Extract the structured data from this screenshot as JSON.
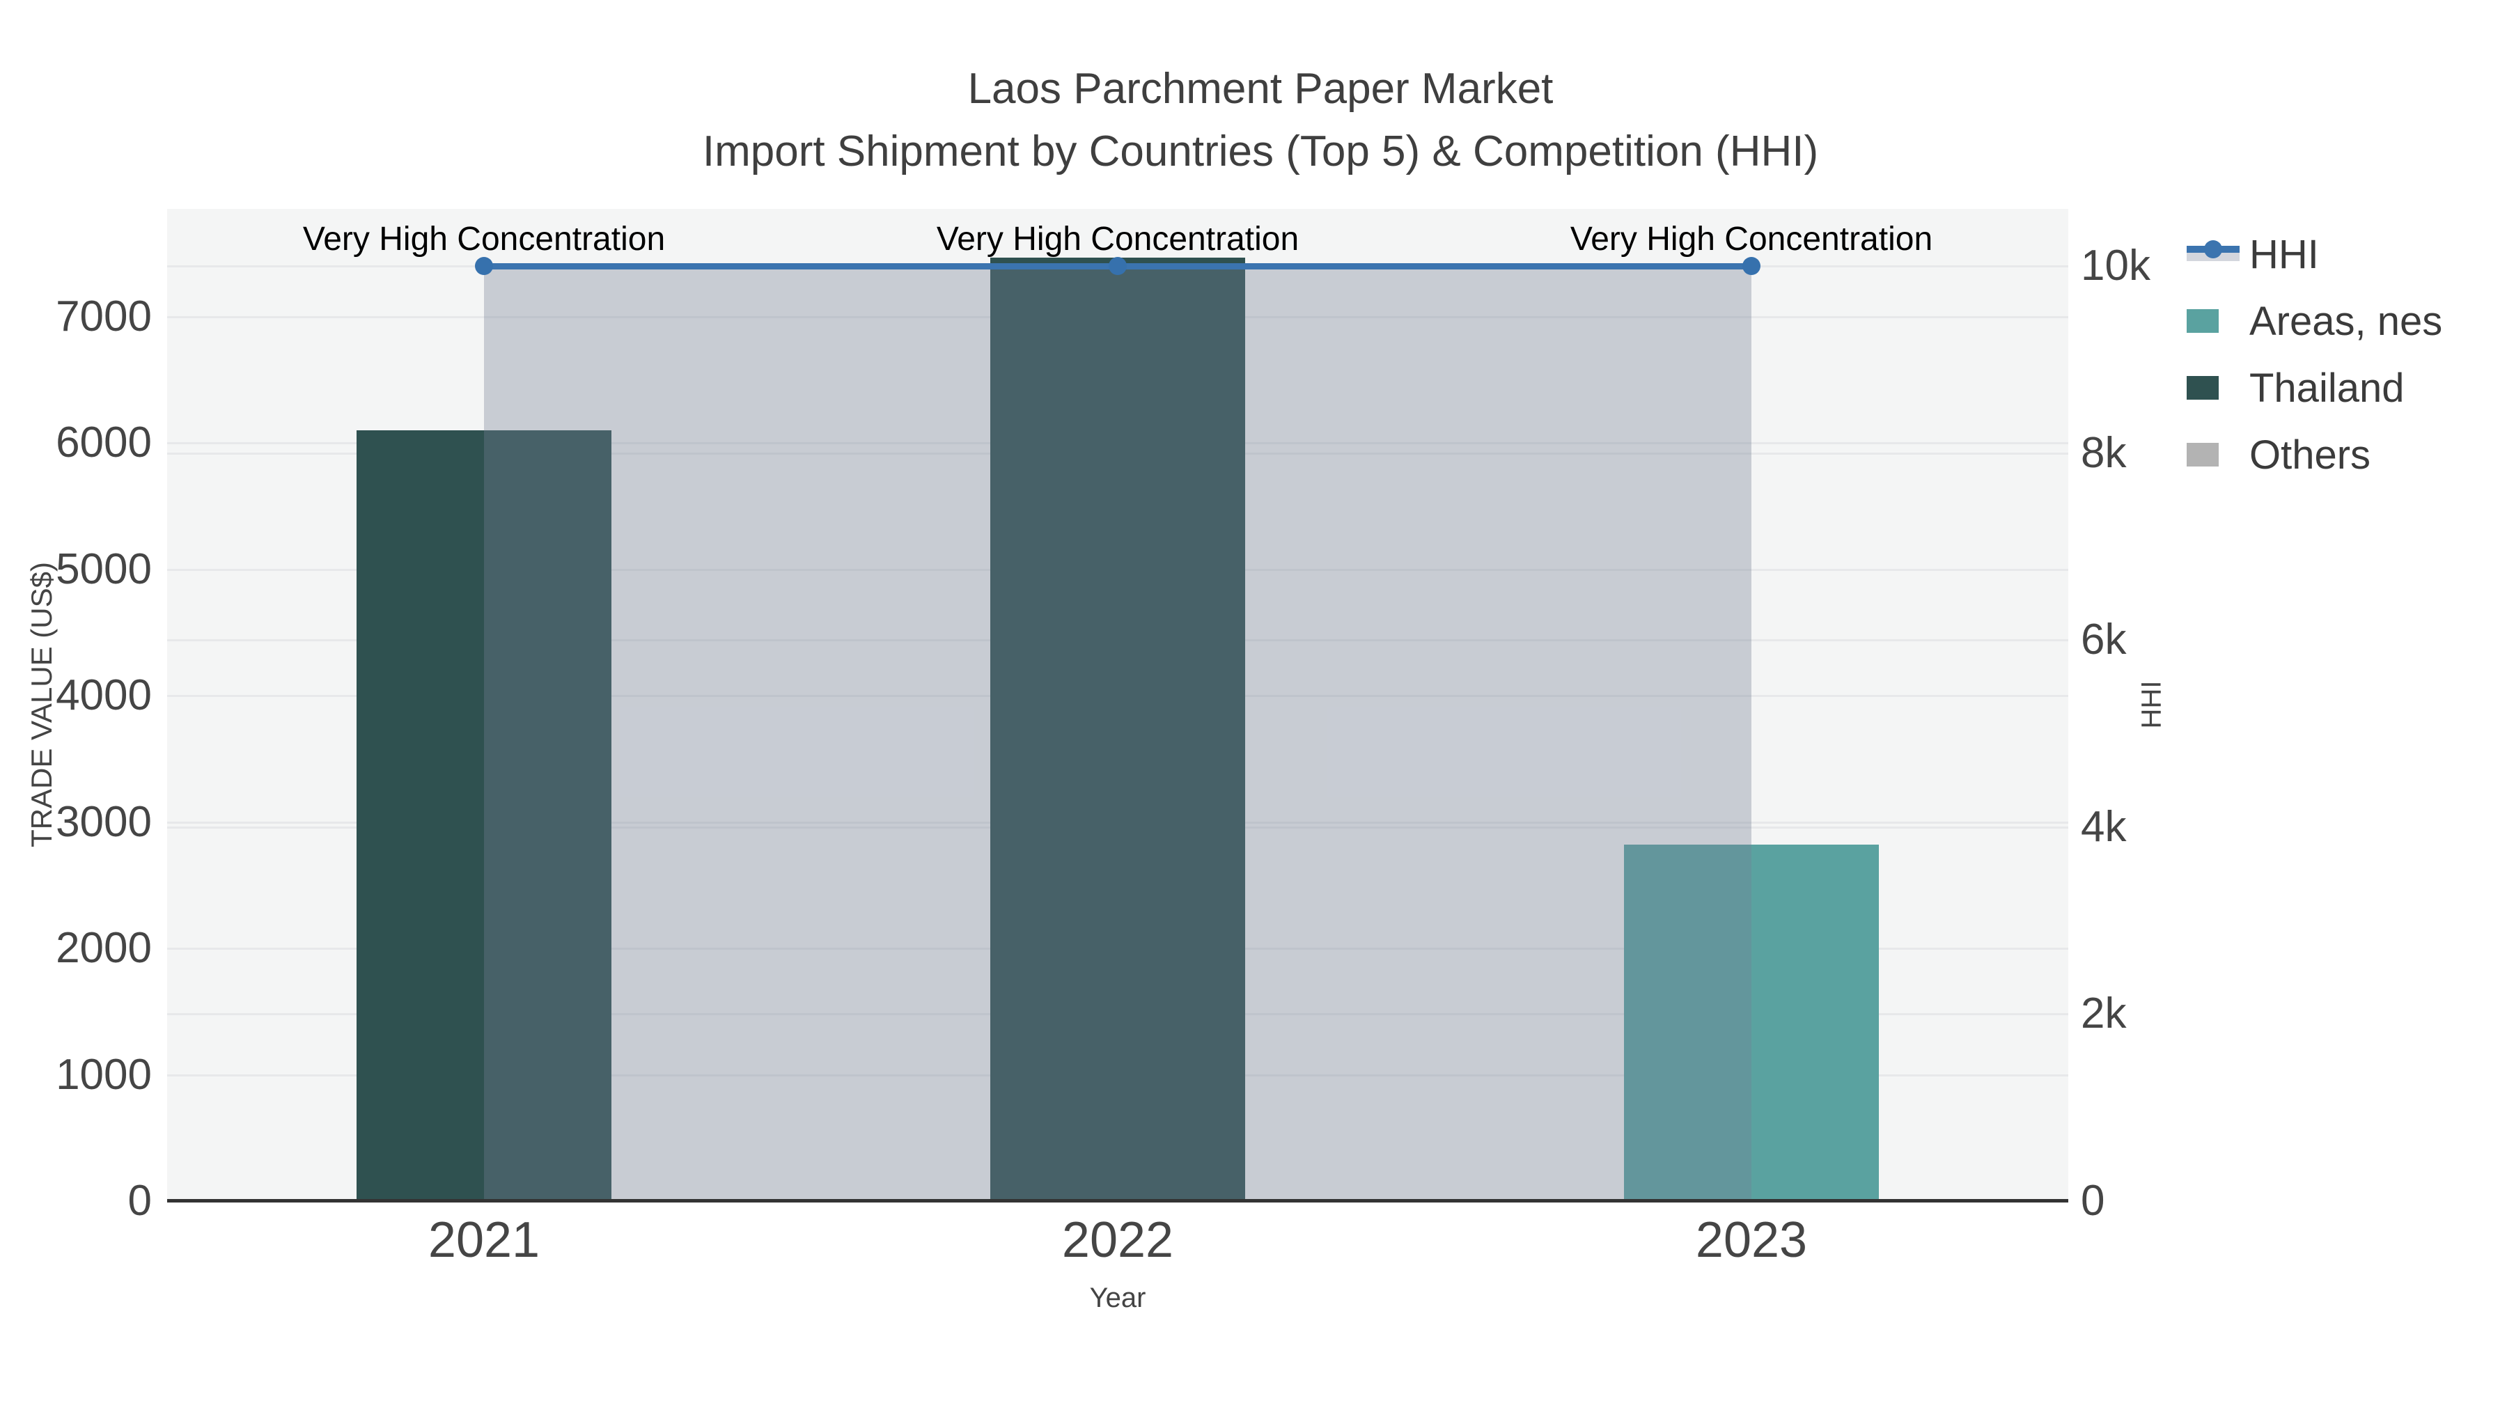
{
  "chart_data": {
    "type": "bar+line",
    "title_line1": "Laos Parchment Paper Market",
    "title_line2": "Import Shipment by Countries (Top 5) & Competition (HHI)",
    "x_axis": {
      "title": "Year",
      "categories": [
        "2021",
        "2022",
        "2023"
      ]
    },
    "left_axis": {
      "title": "TRADE VALUE (US$)",
      "ticks": [
        "0",
        "1000",
        "2000",
        "3000",
        "4000",
        "5000",
        "6000",
        "7000"
      ],
      "tick_values": [
        0,
        1000,
        2000,
        3000,
        4000,
        5000,
        6000,
        7000
      ],
      "range": [
        0,
        7860
      ]
    },
    "right_axis": {
      "title": "HHI",
      "ticks": [
        "0",
        "2k",
        "4k",
        "6k",
        "8k",
        "10k"
      ],
      "tick_values": [
        0,
        2000,
        4000,
        6000,
        8000,
        10000
      ],
      "range": [
        0,
        10610
      ]
    },
    "series": [
      {
        "name": "HHI",
        "type": "line",
        "axis": "right",
        "color": "#3b74af",
        "values": [
          10000,
          10000,
          10000
        ]
      },
      {
        "name": "Areas, nes",
        "type": "bar",
        "axis": "left",
        "color": "#5aa2a0",
        "values": [
          0,
          0,
          2820
        ]
      },
      {
        "name": "Thailand",
        "type": "bar",
        "axis": "left",
        "color": "#2f5150",
        "values": [
          6100,
          7470,
          0
        ]
      },
      {
        "name": "Others",
        "type": "bar",
        "axis": "left",
        "color": "#b3b3b3",
        "values": [
          0,
          0,
          0
        ]
      }
    ],
    "annotations": [
      {
        "text": "Very High Concentration",
        "category": "2021"
      },
      {
        "text": "Very High Concentration",
        "category": "2022"
      },
      {
        "text": "Very High Concentration",
        "category": "2023"
      }
    ],
    "legend_position": "top-right",
    "grid": true
  },
  "legend": {
    "items": [
      {
        "label": "HHI",
        "marker": "line",
        "color": "#3b74af"
      },
      {
        "label": "Areas, nes",
        "marker": "swatch",
        "color": "#5aa2a0"
      },
      {
        "label": "Thailand",
        "marker": "swatch",
        "color": "#2f5150"
      },
      {
        "label": "Others",
        "marker": "swatch",
        "color": "#b3b3b3"
      }
    ]
  },
  "colors": {
    "plot_background": "#f4f5f5",
    "gridline": "#e7e8ea",
    "zero_line": "#333333",
    "hhi_area_fill": "rgba(118,128,150,0.35)",
    "title_text": "#3f3f3f",
    "tick_text": "#454545",
    "annotation_text": "#000000"
  }
}
